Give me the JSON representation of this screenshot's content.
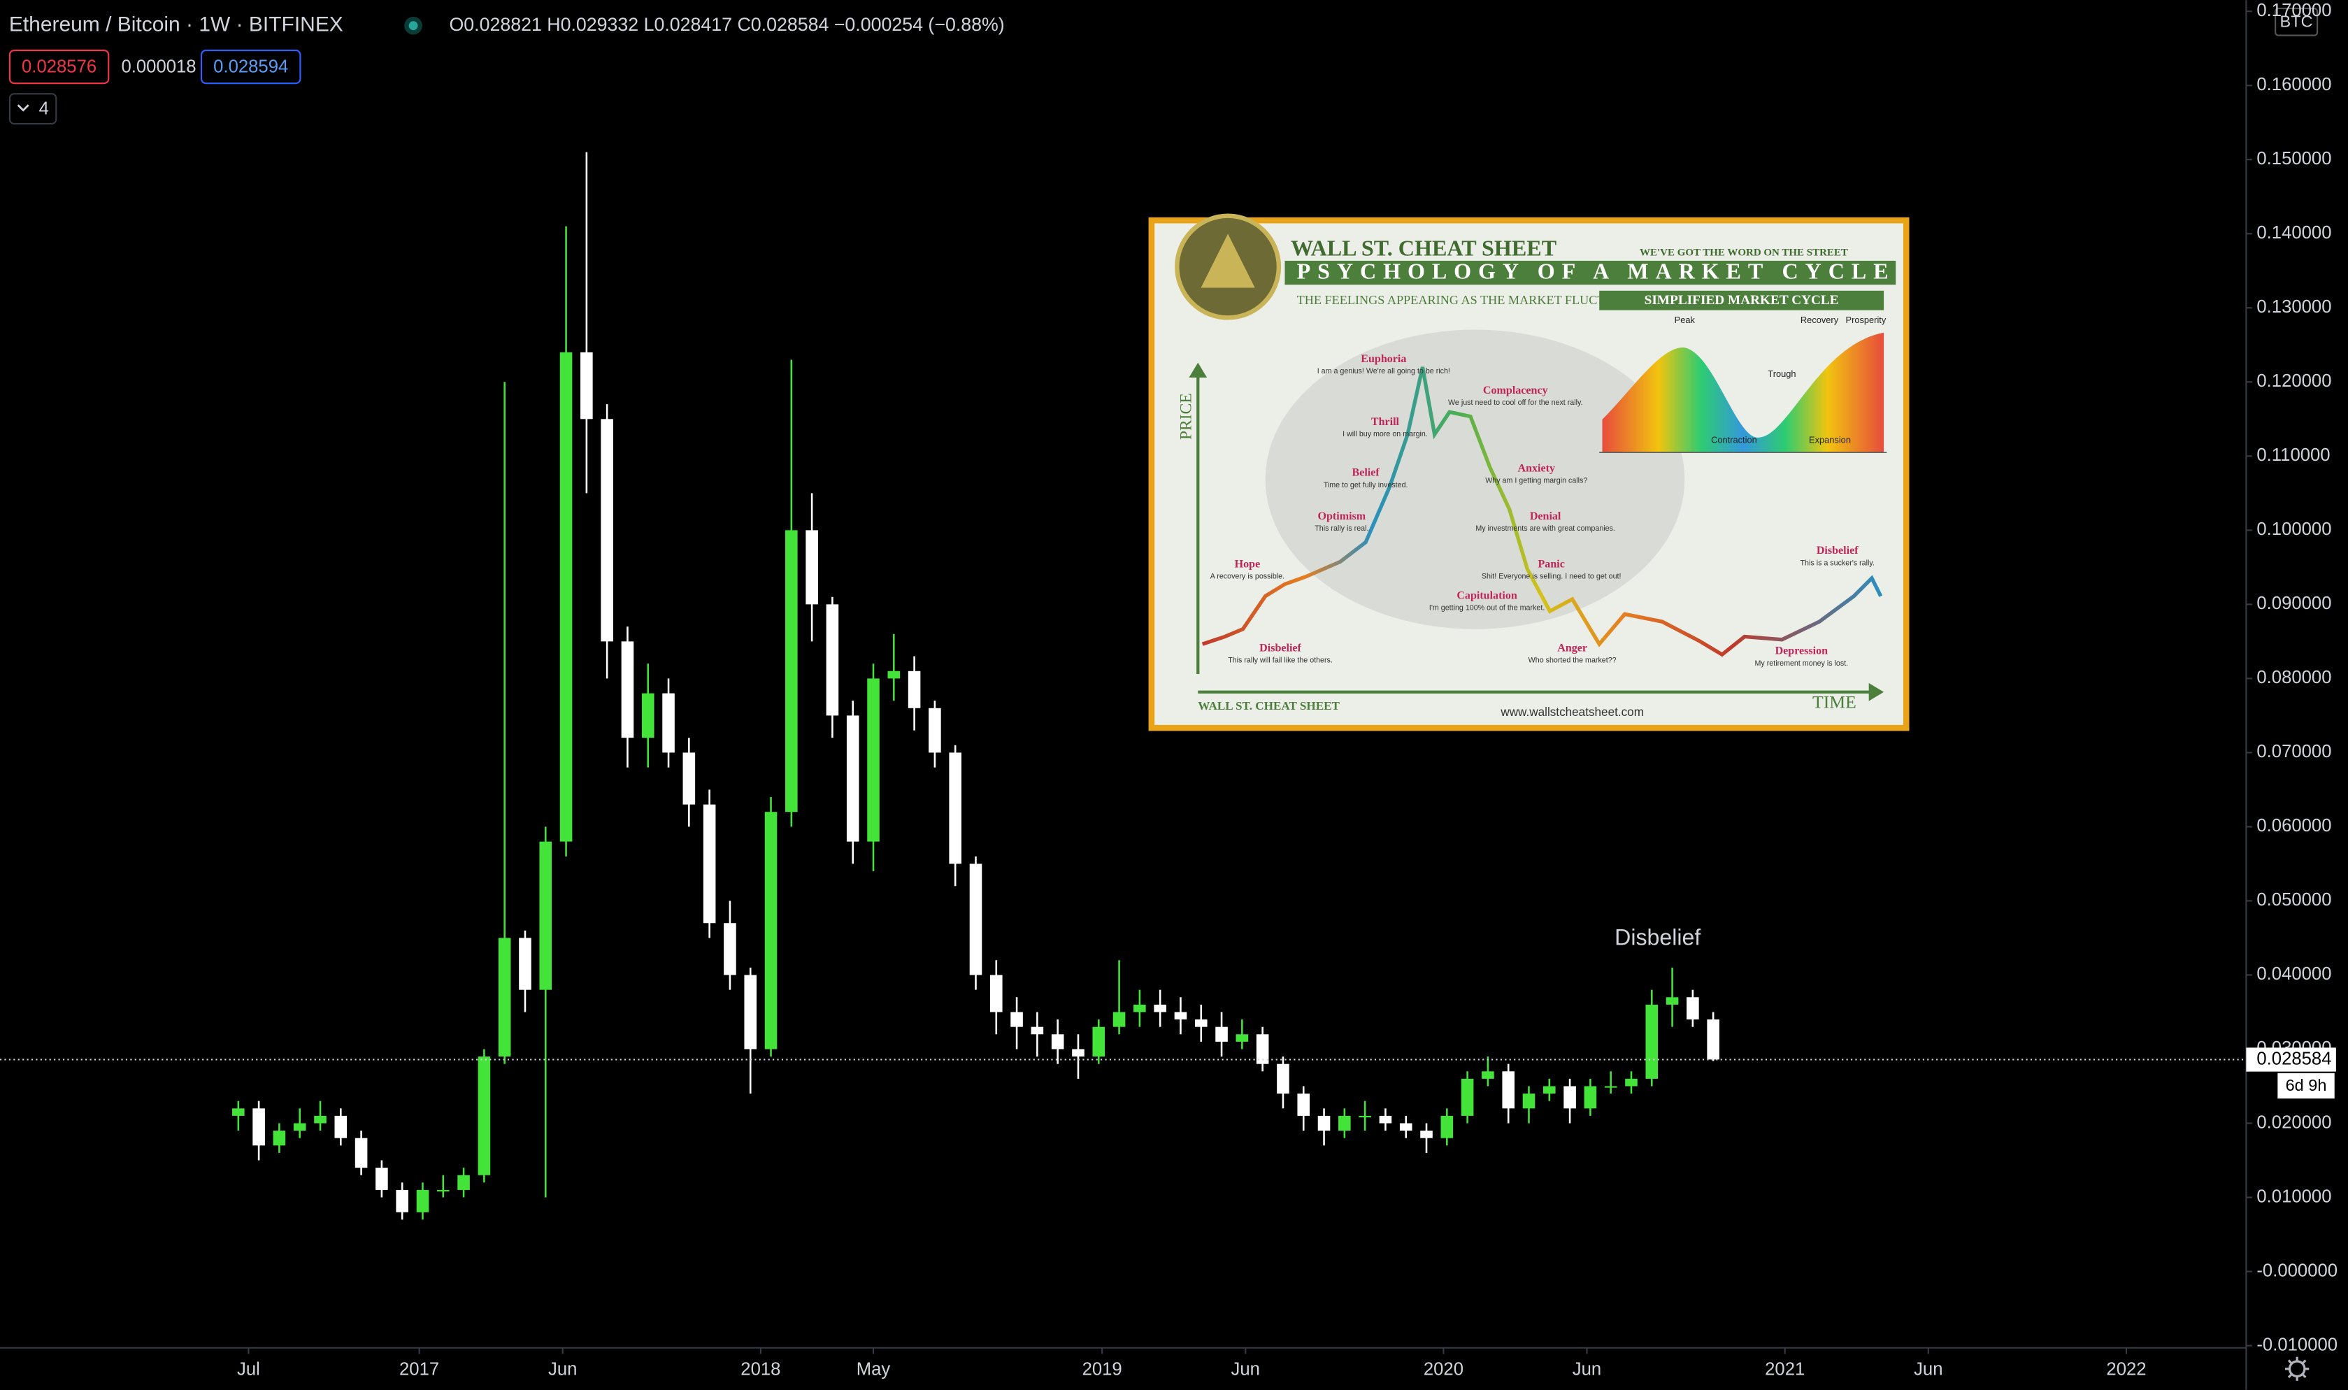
{
  "chart_data": {
    "type": "candlestick",
    "title": "Ethereum / Bitcoin · 1W · BITFINEX",
    "ohlc_text": "O0.028821 H0.029332 L0.028417 C0.028584 −0.000254 (−0.88%)",
    "bid": "0.028576",
    "spread": "0.000018",
    "ask": "0.028594",
    "indicator_count": "4",
    "currency": "BTC",
    "last_price": 0.028584,
    "countdown": "6d 9h",
    "annotation": "Disbelief",
    "up_color": "#44e33a",
    "down_color": "#ffffff",
    "x": [
      2016.47,
      2016.53,
      2016.59,
      2016.65,
      2016.71,
      2016.77,
      2016.83,
      2016.89,
      2016.95,
      2017.01,
      2017.07,
      2017.13,
      2017.19,
      2017.25,
      2017.31,
      2017.37,
      2017.43,
      2017.49,
      2017.55,
      2017.61,
      2017.67,
      2017.73,
      2017.79,
      2017.85,
      2017.91,
      2017.97,
      2018.03,
      2018.09,
      2018.15,
      2018.21,
      2018.27,
      2018.33,
      2018.39,
      2018.45,
      2018.51,
      2018.57,
      2018.63,
      2018.69,
      2018.75,
      2018.81,
      2018.87,
      2018.93,
      2018.99,
      2019.05,
      2019.11,
      2019.17,
      2019.23,
      2019.29,
      2019.35,
      2019.41,
      2019.47,
      2019.53,
      2019.59,
      2019.65,
      2019.71,
      2019.77,
      2019.83,
      2019.89,
      2019.95,
      2020.01,
      2020.07,
      2020.13,
      2020.19,
      2020.25,
      2020.31,
      2020.37,
      2020.43,
      2020.49,
      2020.55,
      2020.61,
      2020.67,
      2020.73,
      2020.79
    ],
    "open": [
      0.021,
      0.022,
      0.017,
      0.019,
      0.02,
      0.021,
      0.018,
      0.014,
      0.011,
      0.008,
      0.011,
      0.011,
      0.013,
      0.029,
      0.045,
      0.038,
      0.058,
      0.124,
      0.115,
      0.085,
      0.072,
      0.078,
      0.07,
      0.063,
      0.047,
      0.04,
      0.03,
      0.062,
      0.1,
      0.09,
      0.075,
      0.058,
      0.08,
      0.081,
      0.076,
      0.07,
      0.055,
      0.04,
      0.035,
      0.033,
      0.032,
      0.03,
      0.029,
      0.033,
      0.035,
      0.036,
      0.035,
      0.034,
      0.033,
      0.031,
      0.032,
      0.028,
      0.024,
      0.021,
      0.019,
      0.021,
      0.021,
      0.02,
      0.019,
      0.018,
      0.021,
      0.026,
      0.027,
      0.022,
      0.024,
      0.025,
      0.022,
      0.025,
      0.025,
      0.026,
      0.036,
      0.037,
      0.034
    ],
    "high": [
      0.023,
      0.023,
      0.02,
      0.022,
      0.023,
      0.022,
      0.019,
      0.015,
      0.012,
      0.012,
      0.013,
      0.014,
      0.03,
      0.12,
      0.046,
      0.06,
      0.141,
      0.151,
      0.117,
      0.087,
      0.082,
      0.08,
      0.072,
      0.065,
      0.05,
      0.041,
      0.064,
      0.123,
      0.105,
      0.091,
      0.077,
      0.082,
      0.086,
      0.083,
      0.077,
      0.071,
      0.056,
      0.042,
      0.037,
      0.035,
      0.034,
      0.032,
      0.034,
      0.042,
      0.038,
      0.038,
      0.037,
      0.036,
      0.035,
      0.034,
      0.033,
      0.029,
      0.025,
      0.022,
      0.022,
      0.023,
      0.022,
      0.021,
      0.02,
      0.022,
      0.027,
      0.029,
      0.028,
      0.025,
      0.026,
      0.026,
      0.026,
      0.027,
      0.027,
      0.038,
      0.041,
      0.038,
      0.035
    ],
    "low": [
      0.019,
      0.015,
      0.016,
      0.018,
      0.019,
      0.017,
      0.013,
      0.01,
      0.007,
      0.007,
      0.01,
      0.01,
      0.012,
      0.028,
      0.035,
      0.01,
      0.056,
      0.105,
      0.08,
      0.068,
      0.068,
      0.068,
      0.06,
      0.045,
      0.038,
      0.024,
      0.029,
      0.06,
      0.085,
      0.072,
      0.055,
      0.054,
      0.077,
      0.073,
      0.068,
      0.052,
      0.038,
      0.032,
      0.03,
      0.029,
      0.028,
      0.026,
      0.028,
      0.032,
      0.033,
      0.033,
      0.032,
      0.031,
      0.029,
      0.03,
      0.027,
      0.022,
      0.019,
      0.017,
      0.018,
      0.019,
      0.019,
      0.018,
      0.016,
      0.017,
      0.02,
      0.025,
      0.02,
      0.02,
      0.023,
      0.02,
      0.021,
      0.024,
      0.024,
      0.025,
      0.033,
      0.033,
      0.0284
    ],
    "close": [
      0.022,
      0.017,
      0.019,
      0.02,
      0.021,
      0.018,
      0.014,
      0.011,
      0.008,
      0.011,
      0.011,
      0.013,
      0.029,
      0.045,
      0.038,
      0.058,
      0.124,
      0.115,
      0.085,
      0.072,
      0.078,
      0.07,
      0.063,
      0.047,
      0.04,
      0.03,
      0.062,
      0.1,
      0.09,
      0.075,
      0.058,
      0.08,
      0.081,
      0.076,
      0.07,
      0.055,
      0.04,
      0.035,
      0.033,
      0.032,
      0.03,
      0.029,
      0.033,
      0.035,
      0.036,
      0.035,
      0.034,
      0.033,
      0.031,
      0.032,
      0.028,
      0.024,
      0.021,
      0.019,
      0.021,
      0.021,
      0.02,
      0.019,
      0.018,
      0.021,
      0.026,
      0.027,
      0.022,
      0.024,
      0.025,
      0.022,
      0.025,
      0.025,
      0.026,
      0.036,
      0.037,
      0.034,
      0.0286
    ],
    "xlim": [
      2015.772,
      2022.351
    ],
    "ylim": [
      -0.0103,
      0.1715
    ],
    "xticks": [
      {
        "value": 2016.5,
        "label": "Jul"
      },
      2017,
      {
        "value": 2017.42,
        "label": "Jun"
      },
      2018,
      {
        "value": 2018.33,
        "label": "May"
      },
      2019,
      {
        "value": 2019.42,
        "label": "Jun"
      },
      2020,
      {
        "value": 2020.42,
        "label": "Jun"
      },
      2021,
      {
        "value": 2021.42,
        "label": "Jun"
      },
      2022
    ],
    "yticks": [
      {
        "value": -0.01,
        "label": "-0.010000"
      },
      {
        "value": 0,
        "label": "-0.000000"
      },
      {
        "value": 0.01,
        "label": "0.010000"
      },
      {
        "value": 0.02,
        "label": "0.020000"
      },
      {
        "value": 0.03,
        "label": "0.030000"
      },
      {
        "value": 0.04,
        "label": "0.040000"
      },
      {
        "value": 0.05,
        "label": "0.050000"
      },
      {
        "value": 0.06,
        "label": "0.060000"
      },
      {
        "value": 0.07,
        "label": "0.070000"
      },
      {
        "value": 0.08,
        "label": "0.080000"
      },
      {
        "value": 0.09,
        "label": "0.090000"
      },
      {
        "value": 0.1,
        "label": "0.100000"
      },
      {
        "value": 0.11,
        "label": "0.110000"
      },
      {
        "value": 0.12,
        "label": "0.120000"
      },
      {
        "value": 0.13,
        "label": "0.130000"
      },
      {
        "value": 0.14,
        "label": "0.140000"
      },
      {
        "value": 0.15,
        "label": "0.150000"
      },
      {
        "value": 0.16,
        "label": "0.160000"
      },
      {
        "value": 0.17,
        "label": "0.170000"
      }
    ]
  },
  "embedded_image": {
    "brand": "WALL ST. CHEAT SHEET",
    "tagline": "WE'VE GOT THE WORD ON THE STREET",
    "headline": "PSYCHOLOGY OF A MARKET CYCLE",
    "subhead": "THE FEELINGS APPEARING AS THE MARKET FLUCTUATES.",
    "inset_title": "SIMPLIFIED MARKET CYCLE",
    "inset_labels": [
      "Peak",
      "Trough",
      "Recovery",
      "Prosperity",
      "Contraction",
      "Expansion"
    ],
    "axis_y": "PRICE",
    "axis_x": "TIME",
    "url": "www.wallstcheatsheet.com",
    "stages": [
      {
        "label": "Disbelief",
        "note": "This rally will fail like the others."
      },
      {
        "label": "Hope",
        "note": "A recovery is possible."
      },
      {
        "label": "Optimism",
        "note": "This rally is real."
      },
      {
        "label": "Belief",
        "note": "Time to get fully invested."
      },
      {
        "label": "Thrill",
        "note": "I will buy more on margin."
      },
      {
        "label": "Euphoria",
        "note": "I am a genius! We're all going to be rich!"
      },
      {
        "label": "Complacency",
        "note": "We just need to cool off for the next rally."
      },
      {
        "label": "Anxiety",
        "note": "Why am I getting margin calls?"
      },
      {
        "label": "Denial",
        "note": "My investments are with great companies."
      },
      {
        "label": "Panic",
        "note": "Shit! Everyone is selling. I need to get out!"
      },
      {
        "label": "Capitulation",
        "note": "I'm getting 100% out of the market."
      },
      {
        "label": "Anger",
        "note": "Who shorted the market??"
      },
      {
        "label": "Depression",
        "note": "My retirement money is lost."
      },
      {
        "label": "Disbelief",
        "note": "This is a sucker's rally."
      }
    ]
  }
}
